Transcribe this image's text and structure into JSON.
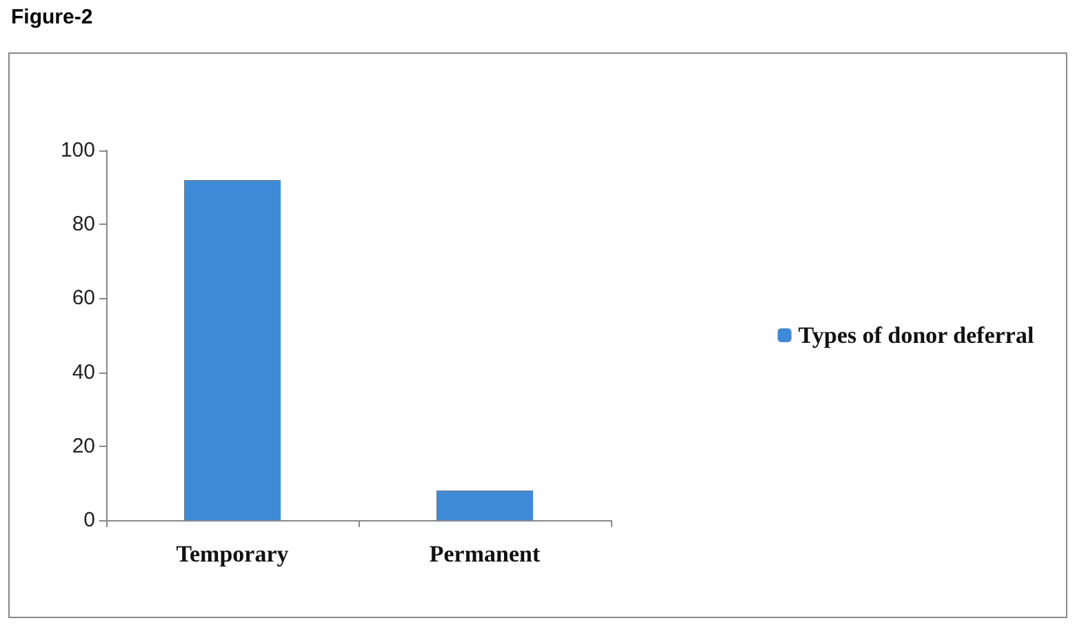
{
  "chart_data": {
    "type": "bar",
    "title": "Figure-2",
    "categories": [
      "Temporary",
      "Permanent"
    ],
    "series": [
      {
        "name": "Types of donor deferral",
        "color": "#3f8ad6",
        "values": [
          92,
          8
        ]
      }
    ],
    "ylim": [
      0,
      100
    ],
    "yticks": [
      0,
      20,
      40,
      60,
      80,
      100
    ],
    "grid": false,
    "legend": "right"
  }
}
